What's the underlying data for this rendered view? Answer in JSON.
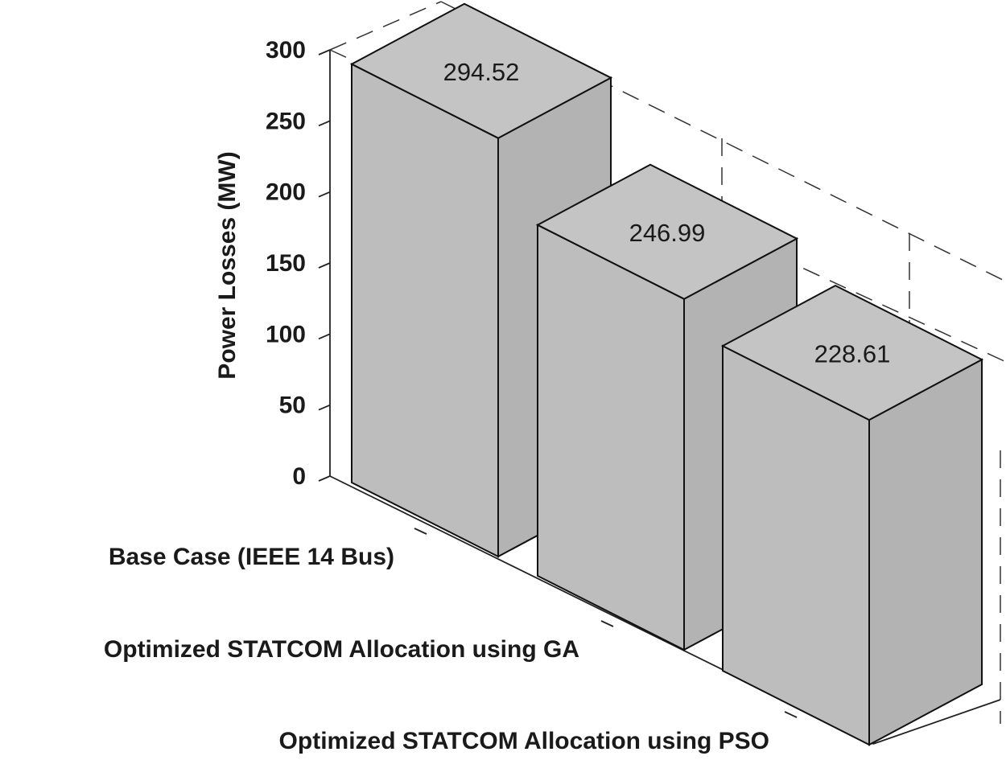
{
  "chart_data": {
    "type": "bar",
    "style": "3d",
    "title": "",
    "xlabel": "",
    "ylabel": "Power Losses (MW)",
    "ylim": [
      0,
      300
    ],
    "yticks": [
      "0",
      "50",
      "100",
      "150",
      "200",
      "250",
      "300"
    ],
    "categories": [
      "Base Case (IEEE 14 Bus)",
      "Optimized STATCOM Allocation using GA",
      "Optimized STATCOM Allocation using PSO"
    ],
    "values": [
      294.52,
      246.99,
      228.61
    ],
    "value_labels": [
      "294.52",
      "246.99",
      "228.61"
    ],
    "grid": true,
    "bar_color": "#bdbdbd"
  }
}
